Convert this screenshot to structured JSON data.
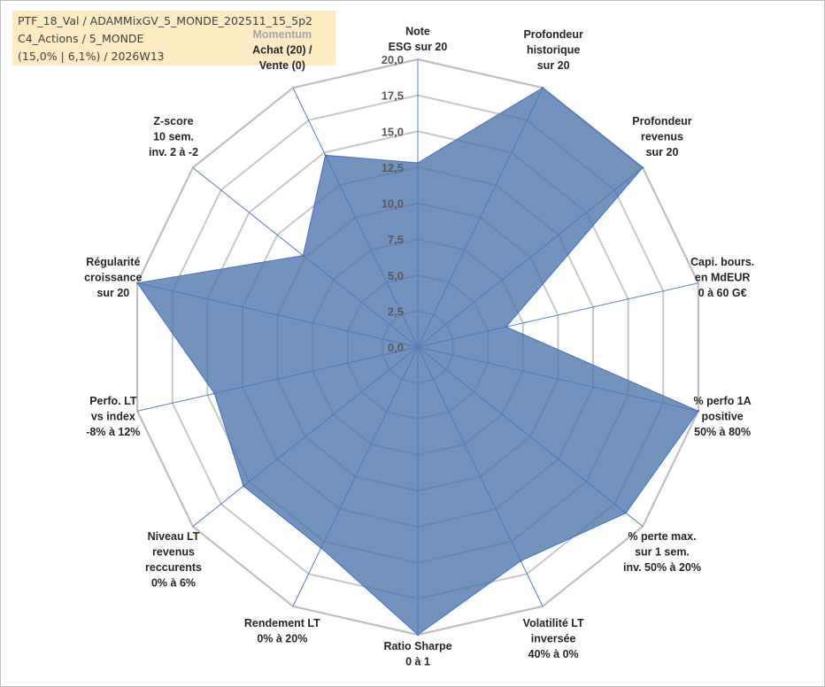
{
  "info": {
    "line1": "PTF_18_Val / ADAMMixGV_5_MONDE_202511_15_5p2",
    "line2": "C4_Actions / 5_MONDE",
    "line3": "(15,0% | 6,1%) / 2026W13"
  },
  "chart_data": {
    "type": "radar",
    "rmin": 0,
    "rmax": 20,
    "ticks": [
      "0,0",
      "2,5",
      "5,0",
      "7,5",
      "10,0",
      "12,5",
      "15,0",
      "17,5",
      "20,0"
    ],
    "tick_values": [
      0,
      2.5,
      5,
      7.5,
      10,
      12.5,
      15,
      17.5,
      20
    ],
    "colors": {
      "fill": "#4a74ab",
      "stroke": "#4472c4",
      "grid": "#c8c8c8",
      "axis": "#4472c4"
    },
    "axes": [
      {
        "lines": [
          "Note",
          "ESG sur 20"
        ]
      },
      {
        "lines": [
          "Profondeur",
          "historique",
          "sur 20"
        ]
      },
      {
        "lines": [
          "Profondeur",
          "revenus",
          "sur 20"
        ]
      },
      {
        "lines": [
          "Capi. bours.",
          "en MdEUR",
          "0 à 60 G€"
        ]
      },
      {
        "lines": [
          "% perfo 1A",
          "positive",
          "50% à 80%"
        ]
      },
      {
        "lines": [
          "% perte max.",
          "sur 1 sem.",
          "inv. 50% à 20%"
        ]
      },
      {
        "lines": [
          "Volatilité LT",
          "inversée",
          "40% à 0%"
        ]
      },
      {
        "lines": [
          "Ratio Sharpe",
          "0 à 1"
        ]
      },
      {
        "lines": [
          "Rendement LT",
          "0% à 20%"
        ]
      },
      {
        "lines": [
          "Niveau LT",
          "revenus",
          "reccurents",
          "0% à 6%"
        ]
      },
      {
        "lines": [
          "Perfo. LT",
          "vs index",
          "-8% à 12%"
        ]
      },
      {
        "lines": [
          "Régularité",
          "croissance",
          "sur 20"
        ]
      },
      {
        "lines": [
          "Z-score",
          "10 sem.",
          "inv. 2 à -2"
        ]
      },
      {
        "lines": [
          "Momentum",
          "Achat (20) /",
          "Vente (0)"
        ]
      }
    ],
    "values": [
      12.8,
      20,
      20,
      6.3,
      20,
      18.5,
      16.5,
      20,
      15.5,
      15.5,
      14.5,
      20,
      10.2,
      14.8
    ]
  }
}
